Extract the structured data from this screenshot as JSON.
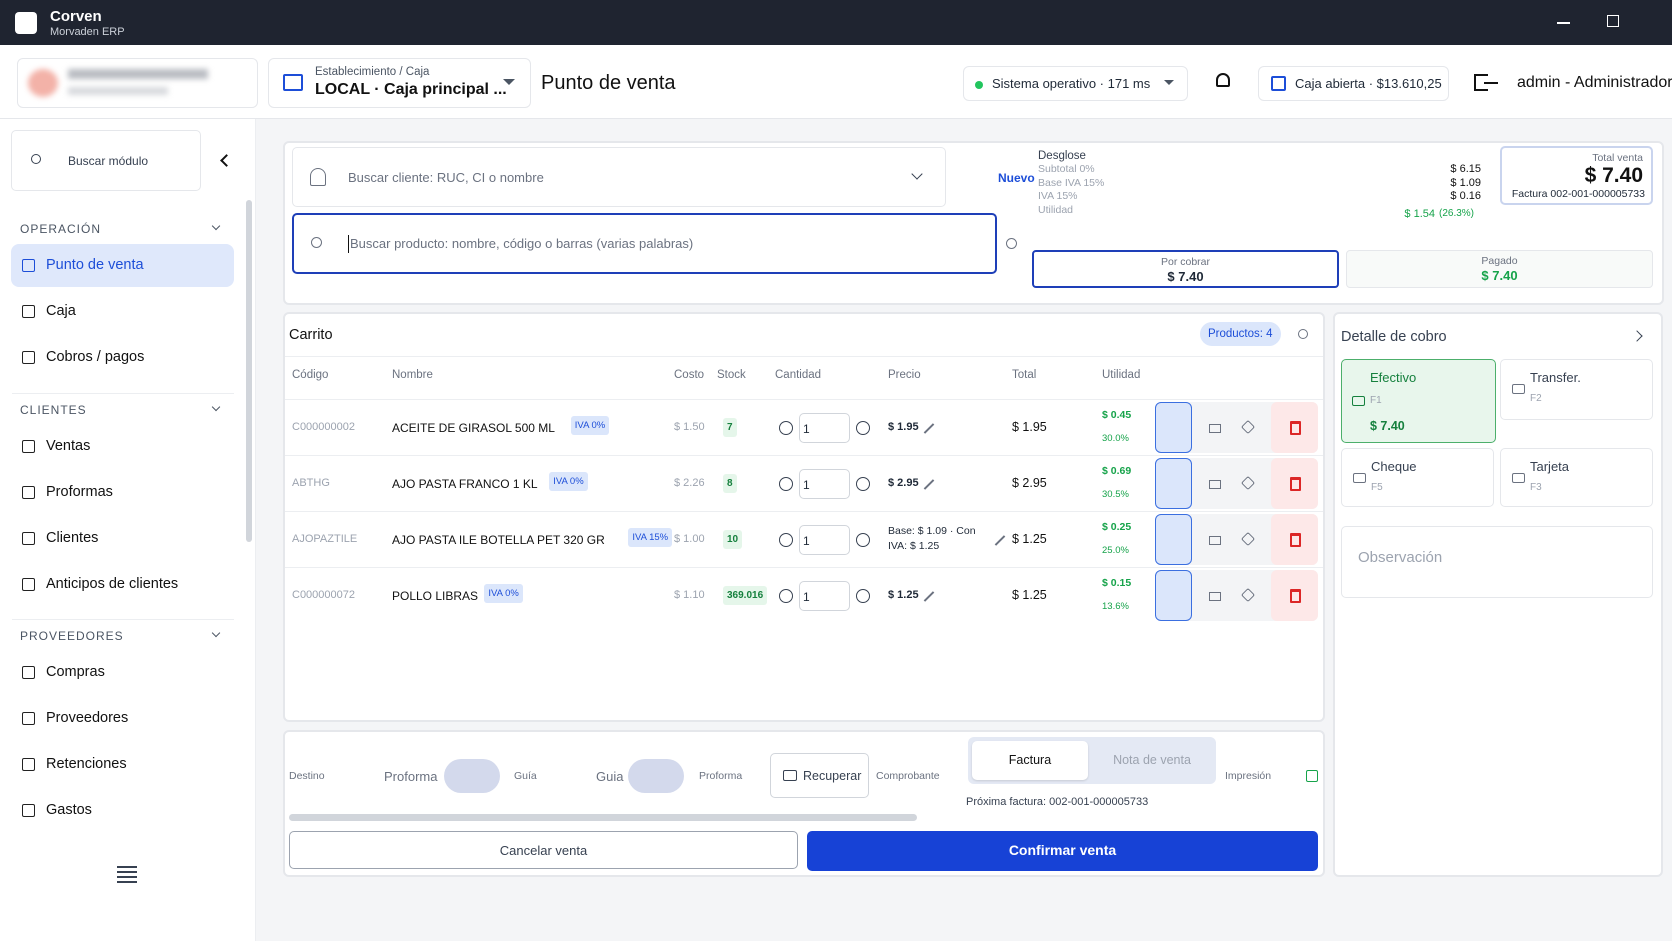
{
  "window": {
    "app_name": "Corven",
    "app_subtitle": "Morvaden ERP"
  },
  "header": {
    "establishment_label": "Establecimiento / Caja",
    "establishment_value": "LOCAL · Caja principal ...",
    "page_title": "Punto de venta",
    "status": "Sistema operativo · 171 ms",
    "cash_status": "Caja abierta · $13.610,25",
    "user": "admin - Administrador"
  },
  "sidebar": {
    "search_placeholder": "Buscar módulo",
    "sections": [
      {
        "title": "OPERACIÓN",
        "items": [
          "Punto de venta",
          "Caja",
          "Cobros / pagos"
        ]
      },
      {
        "title": "CLIENTES",
        "items": [
          "Ventas",
          "Proformas",
          "Clientes",
          "Anticipos de clientes"
        ]
      },
      {
        "title": "PROVEEDORES",
        "items": [
          "Compras",
          "Proveedores",
          "Retenciones",
          "Gastos"
        ]
      }
    ]
  },
  "search": {
    "client_placeholder": "Buscar cliente: RUC, CI o nombre",
    "new_button": "Nuevo",
    "product_placeholder": "Buscar producto: nombre, código o barras (varias palabras)"
  },
  "summary": {
    "title": "Desglose",
    "rows": [
      {
        "label": "Subtotal 0%",
        "value": "$ 6.15"
      },
      {
        "label": "Base IVA 15%",
        "value": "$ 1.09"
      },
      {
        "label": "IVA 15%",
        "value": "$ 0.16"
      },
      {
        "label": "Utilidad",
        "value": "$ 1.54",
        "note": "(26.3%)"
      }
    ],
    "total_label": "Total venta",
    "total_value": "$ 7.40",
    "invoice": "Factura 002-001-000005733",
    "due_label": "Por cobrar",
    "due_value": "$ 7.40",
    "paid_label": "Pagado",
    "paid_value": "$ 7.40"
  },
  "cart": {
    "title": "Carrito",
    "products_badge": "Productos: 4",
    "columns": [
      "Código",
      "Nombre",
      "Costo",
      "Stock",
      "Cantidad",
      "Precio",
      "Total",
      "Utilidad"
    ],
    "rows": [
      {
        "code": "C000000002",
        "name": "ACEITE DE GIRASOL 500 ML",
        "tax": "IVA 0%",
        "cost": "$ 1.50",
        "stock": "7",
        "qty": "1",
        "price": "$ 1.95",
        "total": "$ 1.95",
        "profit": "$ 0.45",
        "margin": "30.0%"
      },
      {
        "code": "ABTHG",
        "name": "AJO PASTA FRANCO 1 KL",
        "tax": "IVA 0%",
        "cost": "$ 2.26",
        "stock": "8",
        "qty": "1",
        "price": "$ 2.95",
        "total": "$ 2.95",
        "profit": "$ 0.69",
        "margin": "30.5%"
      },
      {
        "code": "AJOPAZTILE",
        "name": "AJO PASTA ILE BOTELLA PET 320 GR",
        "tax": "IVA 15%",
        "cost": "$ 1.00",
        "stock": "10",
        "qty": "1",
        "price": "Base: $ 1.09 · Con IVA: $ 1.25",
        "total": "$ 1.25",
        "profit": "$ 0.25",
        "margin": "25.0%"
      },
      {
        "code": "C000000072",
        "name": "POLLO LIBRAS",
        "tax": "IVA 0%",
        "cost": "$ 1.10",
        "stock": "369.016",
        "qty": "1",
        "price": "$ 1.25",
        "total": "$ 1.25",
        "profit": "$ 0.15",
        "margin": "13.6%"
      }
    ]
  },
  "footer": {
    "destino": "Destino",
    "proforma_toggle": "Proforma",
    "guia_label": "Guía",
    "guia_toggle": "Guia",
    "proforma_label": "Proforma",
    "recover": "Recuperar",
    "voucher": "Comprobante",
    "invoice_tab": "Factura",
    "note_tab": "Nota de venta",
    "print": "Impresión",
    "next_invoice": "Próxima factura: 002-001-000005733",
    "cancel": "Cancelar venta",
    "confirm": "Confirmar venta"
  },
  "payment": {
    "title": "Detalle de cobro",
    "methods": [
      {
        "name": "Efectivo",
        "key": "F1",
        "amount": "$ 7.40"
      },
      {
        "name": "Transfer.",
        "key": "F2"
      },
      {
        "name": "Cheque",
        "key": "F5"
      },
      {
        "name": "Tarjeta",
        "key": "F3"
      }
    ],
    "observation_placeholder": "Observación"
  }
}
